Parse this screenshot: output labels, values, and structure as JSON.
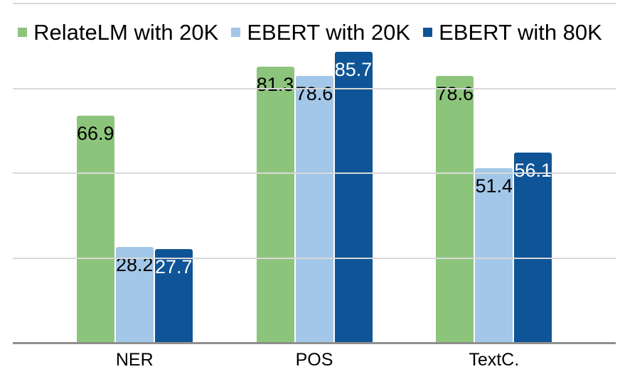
{
  "chart_data": {
    "type": "bar",
    "title": "",
    "categories": [
      "NER",
      "POS",
      "TextC."
    ],
    "series": [
      {
        "name": "RelateLM with 20K",
        "color": "#8dc47c",
        "label_color": "#000000",
        "values": [
          66.9,
          81.3,
          78.6
        ]
      },
      {
        "name": "EBERT with 20K",
        "color": "#a3c7e8",
        "label_color": "#000000",
        "values": [
          28.2,
          78.6,
          51.4
        ]
      },
      {
        "name": "EBERT with 80K",
        "color": "#0f5496",
        "label_color": "#ffffff",
        "values": [
          27.7,
          85.7,
          56.1
        ]
      }
    ],
    "ylim": [
      0,
      100
    ],
    "gridline_step": 25,
    "grid": true,
    "legend_position": "top",
    "data_labels": true
  },
  "colors": {
    "background": "#ffffff",
    "gridline": "#d9d9d9",
    "axis_line": "#8f8f8f",
    "text": "#000000"
  }
}
